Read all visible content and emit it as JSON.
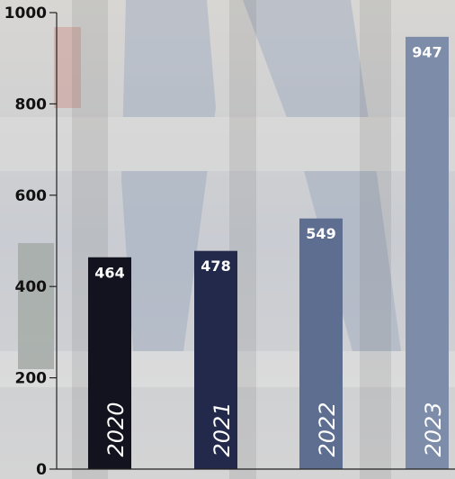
{
  "chart_data": {
    "type": "bar",
    "categories": [
      "2020",
      "2021",
      "2022",
      "2023"
    ],
    "values": [
      464,
      478,
      549,
      947
    ],
    "colors": [
      "#12131f",
      "#23294a",
      "#5d6e90",
      "#7d8ca8"
    ],
    "ylim": [
      0,
      1000
    ],
    "yticks": [
      0,
      200,
      400,
      600,
      800,
      1000
    ]
  }
}
